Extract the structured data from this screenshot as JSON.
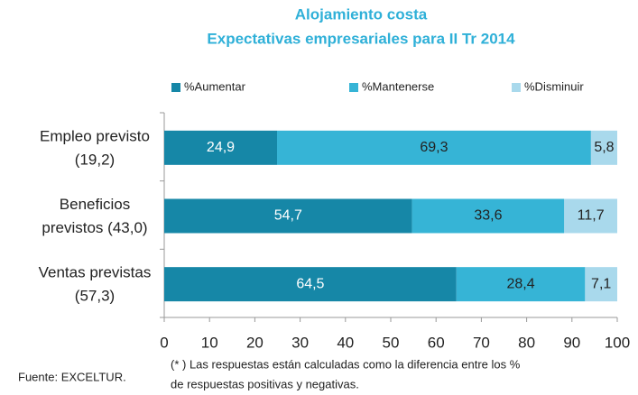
{
  "chart_data": {
    "type": "stacked_barh",
    "title": [
      "Alojamiento costa",
      "Expectativas empresariales para II Tr 2014"
    ],
    "categories": [
      [
        "Empleo previsto",
        "(19,2)"
      ],
      [
        "Beneficios",
        "previstos (43,0)"
      ],
      [
        "Ventas previstas",
        "(57,3)"
      ]
    ],
    "series": [
      {
        "name": "%Aumentar",
        "color": "#1687a7",
        "values": [
          24.9,
          54.7,
          64.5
        ],
        "value_labels": [
          "24,9",
          "54,7",
          "64,5"
        ]
      },
      {
        "name": "%Mantenerse",
        "color": "#36b4d6",
        "values": [
          69.3,
          33.6,
          28.4
        ],
        "value_labels": [
          "69,3",
          "33,6",
          "28,4"
        ]
      },
      {
        "name": "%Disminuir",
        "color": "#a9d9ec",
        "values": [
          5.8,
          11.7,
          7.1
        ],
        "value_labels": [
          "5,8",
          "11,7",
          "7,1"
        ]
      }
    ],
    "xlim": [
      0,
      100
    ],
    "xticks": [
      0,
      10,
      20,
      30,
      40,
      50,
      60,
      70,
      80,
      90,
      100
    ],
    "source": "Fuente: EXCELTUR.",
    "note": [
      "(* ) Las respuestas están calculadas como la diferencia entre los %",
      "de respuestas positivas y negativas."
    ]
  }
}
